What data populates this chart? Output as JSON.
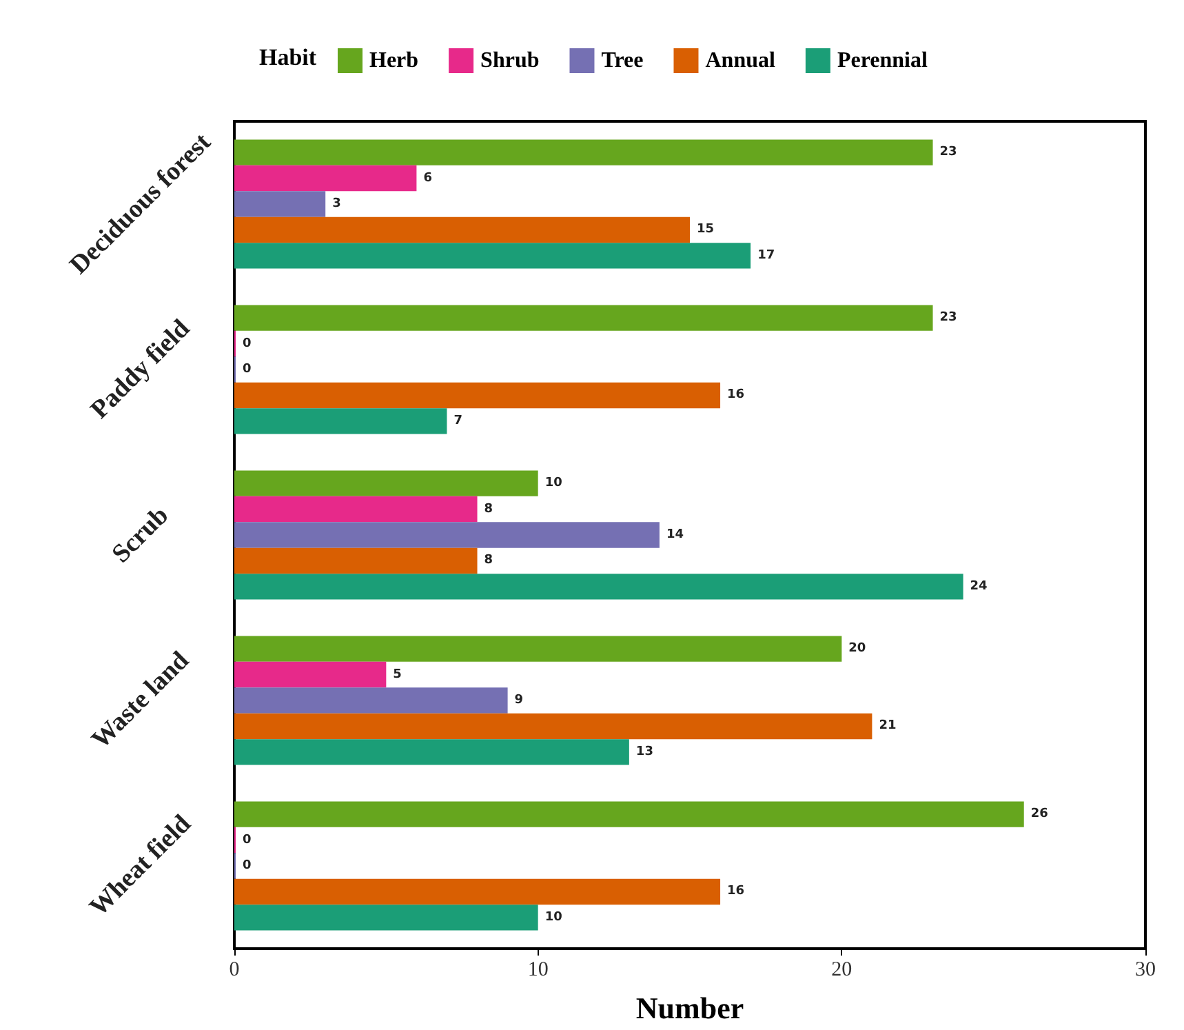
{
  "chart_data": {
    "type": "bar",
    "orientation": "horizontal",
    "legend_title": "Habit",
    "xlabel": "Number",
    "categories": [
      "Deciduous forest",
      "Paddy field",
      "Scrub",
      "Waste land",
      "Wheat field"
    ],
    "series": [
      {
        "name": "Herb",
        "color": "#66a61e",
        "values": [
          23,
          23,
          10,
          20,
          26
        ]
      },
      {
        "name": "Shrub",
        "color": "#e7298a",
        "values": [
          6,
          0,
          8,
          5,
          0
        ]
      },
      {
        "name": "Tree",
        "color": "#7570b3",
        "values": [
          3,
          0,
          14,
          9,
          0
        ]
      },
      {
        "name": "Annual",
        "color": "#d95f02",
        "values": [
          15,
          16,
          8,
          21,
          16
        ]
      },
      {
        "name": "Perennial",
        "color": "#1b9e77",
        "values": [
          17,
          7,
          24,
          13,
          10
        ]
      }
    ],
    "xlim": [
      0,
      30
    ],
    "xticks": [
      0,
      10,
      20,
      30
    ],
    "data_labels": true,
    "grid": false,
    "legend": "top"
  }
}
